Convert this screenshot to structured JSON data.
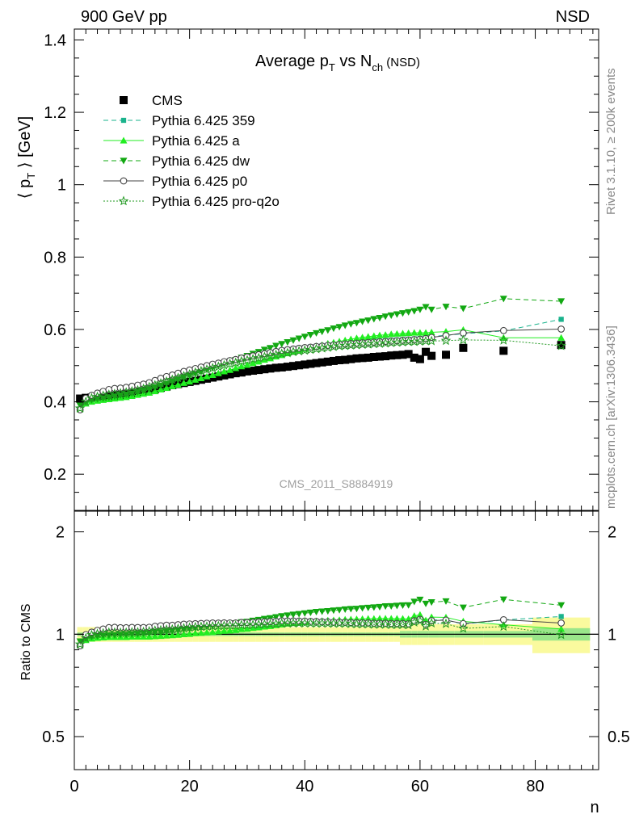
{
  "header": {
    "left": "900 GeV pp",
    "right": "NSD"
  },
  "side": {
    "rivet": "Rivet 3.1.10, ≥ 200k events",
    "mcplots": "mcplots.cern.ch [arXiv:1306.3436]"
  },
  "chart_data": {
    "type": "scatter",
    "title_parts": {
      "a": "Average p",
      "b": "T",
      "c": " vs N",
      "d": "ch",
      "e": " (NSD)"
    },
    "ylabel_parts": {
      "a": "⟨ p",
      "b": "T",
      "c": " ⟩ [GeV]"
    },
    "xlabel": "n",
    "ratio_ylabel": "Ratio to CMS",
    "watermark": "CMS_2011_S8884919",
    "xlim": [
      0,
      91
    ],
    "ylim": [
      0.1,
      1.43
    ],
    "ratio_ylim": [
      0.4,
      2.3
    ],
    "ratio_scale": "log",
    "xticks": [
      "0",
      "20",
      "40",
      "60",
      "80"
    ],
    "yticks": [
      "0.2",
      "0.4",
      "0.6",
      "0.8",
      "1",
      "1.2",
      "1.4"
    ],
    "ratio_yticks": [
      "0.5",
      "1",
      "2"
    ],
    "legend_position": "top-left",
    "legend": [
      {
        "label": "CMS"
      },
      {
        "label": "Pythia 6.425 359"
      },
      {
        "label": "Pythia 6.425 a"
      },
      {
        "label": "Pythia 6.425 dw"
      },
      {
        "label": "Pythia 6.425 p0"
      },
      {
        "label": "Pythia 6.425 pro-q2o"
      }
    ],
    "colors": {
      "data": "#000000",
      "p359": "#1ab38c",
      "a": "#22ee22",
      "dw": "#12a812",
      "p0": "#444444",
      "pro": "#229922",
      "band_outer": "#fafa9e",
      "band_inner": "#9ae68a"
    },
    "x": [
      1,
      2,
      3,
      4,
      5,
      6,
      7,
      8,
      9,
      10,
      11,
      12,
      13,
      14,
      15,
      16,
      17,
      18,
      19,
      20,
      21,
      22,
      23,
      24,
      25,
      26,
      27,
      28,
      29,
      30,
      31,
      32,
      33,
      34,
      35,
      36,
      37,
      38,
      39,
      40,
      41,
      42,
      43,
      44,
      45,
      46,
      47,
      48,
      49,
      50,
      51,
      52,
      53,
      54,
      55,
      56,
      57,
      58,
      59,
      60,
      61,
      62,
      64.5,
      67.5,
      74.5,
      84.5
    ],
    "series": [
      {
        "name": "CMS",
        "values": [
          0.409,
          0.411,
          0.412,
          0.413,
          0.414,
          0.415,
          0.417,
          0.419,
          0.421,
          0.423,
          0.426,
          0.429,
          0.432,
          0.435,
          0.439,
          0.442,
          0.446,
          0.449,
          0.452,
          0.455,
          0.458,
          0.461,
          0.464,
          0.467,
          0.47,
          0.473,
          0.476,
          0.479,
          0.481,
          0.484,
          0.486,
          0.488,
          0.49,
          0.492,
          0.494,
          0.495,
          0.497,
          0.499,
          0.501,
          0.503,
          0.505,
          0.507,
          0.509,
          0.511,
          0.513,
          0.515,
          0.516,
          0.518,
          0.52,
          0.521,
          0.522,
          0.524,
          0.525,
          0.526,
          0.528,
          0.529,
          0.53,
          0.532,
          0.522,
          0.518,
          0.538,
          0.527,
          0.53,
          0.549,
          0.541,
          0.557
        ]
      },
      {
        "name": "Pythia 6.425 359",
        "values": [
          0.38,
          0.408,
          0.418,
          0.424,
          0.428,
          0.433,
          0.437,
          0.438,
          0.44,
          0.443,
          0.446,
          0.449,
          0.453,
          0.459,
          0.465,
          0.47,
          0.474,
          0.479,
          0.484,
          0.488,
          0.492,
          0.496,
          0.5,
          0.504,
          0.507,
          0.511,
          0.514,
          0.517,
          0.521,
          0.524,
          0.528,
          0.531,
          0.534,
          0.537,
          0.54,
          0.543,
          0.545,
          0.547,
          0.549,
          0.55,
          0.552,
          0.553,
          0.555,
          0.557,
          0.558,
          0.56,
          0.561,
          0.563,
          0.564,
          0.565,
          0.566,
          0.567,
          0.568,
          0.569,
          0.57,
          0.571,
          0.572,
          0.573,
          0.574,
          0.575,
          0.577,
          0.58,
          0.584,
          0.588,
          0.596,
          0.628
        ]
      },
      {
        "name": "Pythia 6.425 a",
        "values": [
          0.38,
          0.395,
          0.4,
          0.403,
          0.405,
          0.407,
          0.409,
          0.411,
          0.413,
          0.416,
          0.419,
          0.422,
          0.425,
          0.429,
          0.434,
          0.438,
          0.443,
          0.447,
          0.452,
          0.456,
          0.461,
          0.465,
          0.47,
          0.474,
          0.479,
          0.484,
          0.488,
          0.493,
          0.498,
          0.502,
          0.507,
          0.511,
          0.516,
          0.52,
          0.525,
          0.529,
          0.534,
          0.538,
          0.542,
          0.546,
          0.55,
          0.554,
          0.557,
          0.561,
          0.564,
          0.567,
          0.57,
          0.573,
          0.576,
          0.578,
          0.58,
          0.582,
          0.584,
          0.585,
          0.587,
          0.588,
          0.589,
          0.59,
          0.591,
          0.591,
          0.591,
          0.592,
          0.594,
          0.599,
          0.577,
          0.577
        ]
      },
      {
        "name": "Pythia 6.425 dw",
        "values": [
          0.39,
          0.4,
          0.405,
          0.408,
          0.41,
          0.412,
          0.415,
          0.418,
          0.42,
          0.423,
          0.427,
          0.431,
          0.435,
          0.44,
          0.445,
          0.45,
          0.456,
          0.461,
          0.467,
          0.472,
          0.478,
          0.483,
          0.489,
          0.494,
          0.5,
          0.505,
          0.511,
          0.516,
          0.522,
          0.527,
          0.533,
          0.538,
          0.544,
          0.549,
          0.555,
          0.56,
          0.565,
          0.57,
          0.575,
          0.58,
          0.585,
          0.59,
          0.594,
          0.598,
          0.603,
          0.607,
          0.611,
          0.615,
          0.618,
          0.622,
          0.625,
          0.629,
          0.632,
          0.636,
          0.639,
          0.642,
          0.645,
          0.648,
          0.651,
          0.655,
          0.662,
          0.655,
          0.663,
          0.658,
          0.685,
          0.678
        ]
      },
      {
        "name": "Pythia 6.425 p0",
        "values": [
          0.378,
          0.41,
          0.418,
          0.424,
          0.429,
          0.434,
          0.437,
          0.438,
          0.44,
          0.443,
          0.446,
          0.449,
          0.453,
          0.459,
          0.465,
          0.47,
          0.474,
          0.479,
          0.484,
          0.488,
          0.492,
          0.496,
          0.5,
          0.504,
          0.507,
          0.511,
          0.514,
          0.517,
          0.521,
          0.524,
          0.527,
          0.53,
          0.533,
          0.536,
          0.539,
          0.542,
          0.544,
          0.546,
          0.548,
          0.55,
          0.551,
          0.553,
          0.554,
          0.556,
          0.557,
          0.559,
          0.56,
          0.561,
          0.562,
          0.563,
          0.564,
          0.565,
          0.566,
          0.567,
          0.568,
          0.569,
          0.57,
          0.571,
          0.572,
          0.573,
          0.575,
          0.578,
          0.583,
          0.59,
          0.597,
          0.601
        ]
      },
      {
        "name": "Pythia 6.425 pro-q2o",
        "values": [
          0.382,
          0.4,
          0.41,
          0.414,
          0.417,
          0.42,
          0.422,
          0.424,
          0.426,
          0.429,
          0.432,
          0.436,
          0.441,
          0.446,
          0.451,
          0.456,
          0.461,
          0.466,
          0.471,
          0.476,
          0.481,
          0.485,
          0.489,
          0.493,
          0.497,
          0.501,
          0.505,
          0.508,
          0.512,
          0.515,
          0.518,
          0.521,
          0.524,
          0.527,
          0.53,
          0.533,
          0.535,
          0.538,
          0.54,
          0.542,
          0.544,
          0.546,
          0.548,
          0.55,
          0.552,
          0.554,
          0.555,
          0.556,
          0.557,
          0.558,
          0.559,
          0.56,
          0.561,
          0.562,
          0.563,
          0.564,
          0.565,
          0.566,
          0.566,
          0.567,
          0.568,
          0.568,
          0.569,
          0.571,
          0.57,
          0.555
        ]
      }
    ]
  }
}
